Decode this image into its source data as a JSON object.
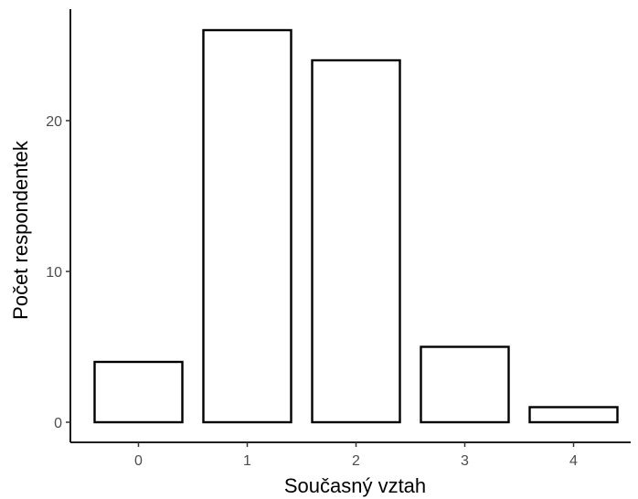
{
  "chart_data": {
    "type": "bar",
    "title": "",
    "xlabel": "Současný vztah",
    "ylabel": "Počet respondentek",
    "categories": [
      "0",
      "1",
      "2",
      "3",
      "4"
    ],
    "values": [
      4,
      26,
      24,
      5,
      1
    ],
    "ylim": [
      0,
      27.3
    ],
    "yticks": [
      0,
      10,
      20
    ],
    "ytick_labels": [
      "0",
      "10",
      "20"
    ],
    "grid": false,
    "legend": "none",
    "bar_fill": "#ffffff",
    "bar_stroke": "#000000",
    "axis_color": "#000000"
  }
}
